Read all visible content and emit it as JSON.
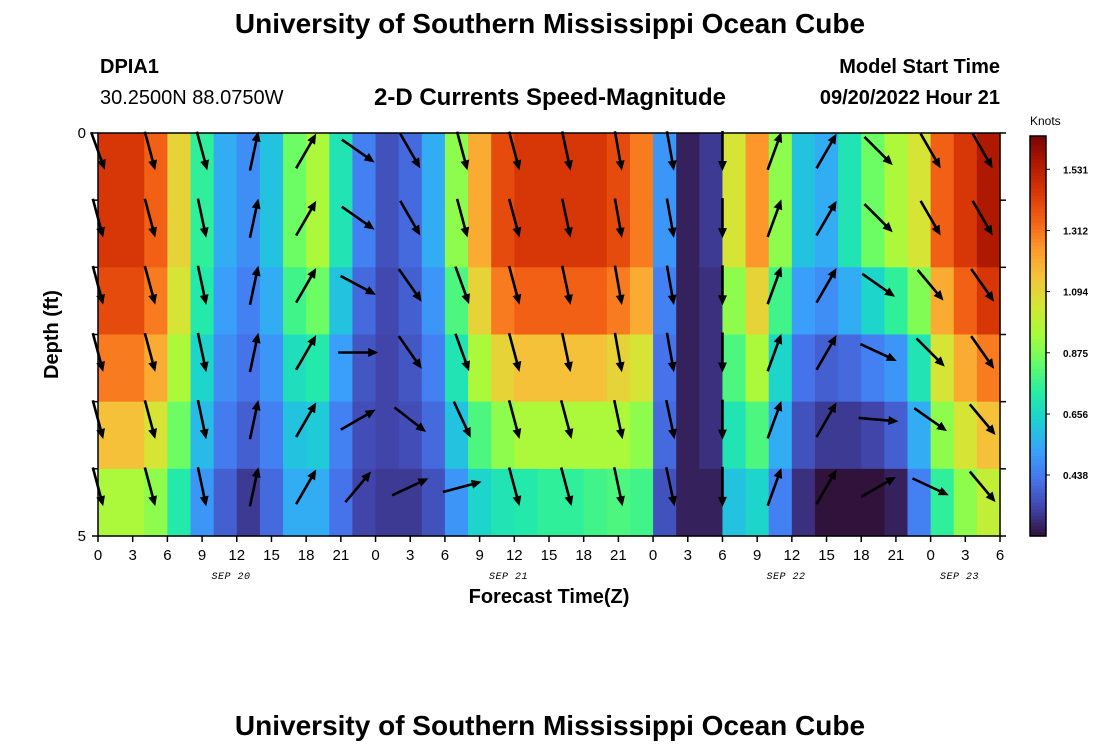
{
  "header": {
    "title": "University of Southern Mississippi Ocean Cube",
    "station_id": "DPIA1",
    "station_coords": "30.2500N  88.0750W",
    "subtitle": "2-D Currents Speed-Magnitude",
    "model_start_label": "Model Start Time",
    "model_start_value": "09/20/2022 Hour 21"
  },
  "footer": {
    "title": "University of Southern Mississippi Ocean Cube"
  },
  "chart_data": {
    "type": "heatmap",
    "title": "2-D Currents Speed-Magnitude",
    "xlabel": "Forecast Time(Z)",
    "ylabel": "Depth (ft)",
    "x_tick_labels": [
      "0",
      "3",
      "6",
      "9",
      "12",
      "15",
      "18",
      "21",
      "0",
      "3",
      "6",
      "9",
      "12",
      "15",
      "18",
      "21",
      "0",
      "3",
      "6",
      "9",
      "12",
      "15",
      "18",
      "21",
      "0",
      "3",
      "6"
    ],
    "date_labels": [
      {
        "label": "SEP 20",
        "hour": 11.5
      },
      {
        "label": "SEP 21",
        "hour": 35.5
      },
      {
        "label": "SEP 22",
        "hour": 59.5
      },
      {
        "label": "SEP 23",
        "hour": 74.5
      }
    ],
    "xlim": [
      0,
      78
    ],
    "ylim": [
      0,
      5
    ],
    "y_ticks": [
      0,
      5
    ],
    "colorbar": {
      "label": "Knots",
      "ticks": [
        1.531,
        1.312,
        1.094,
        0.875,
        0.656,
        0.438
      ],
      "range": [
        0.22,
        1.65
      ]
    },
    "hours": [
      0,
      2,
      4,
      6,
      8,
      10,
      12,
      14,
      16,
      18,
      20,
      22,
      24,
      26,
      28,
      30,
      32,
      34,
      36,
      38,
      40,
      42,
      44,
      46,
      48,
      50,
      52,
      54,
      56,
      58,
      60,
      62,
      64,
      66,
      68,
      70,
      72,
      74,
      76,
      78
    ],
    "depth_layers": [
      0,
      1,
      2,
      3,
      4,
      5
    ],
    "speed_knots": [
      [
        1.45,
        1.45,
        1.35,
        1.1,
        0.75,
        0.55,
        0.48,
        0.6,
        0.85,
        0.95,
        0.7,
        0.45,
        0.35,
        0.4,
        0.55,
        0.9,
        1.2,
        1.4,
        1.45,
        1.45,
        1.45,
        1.45,
        1.4,
        1.3,
        0.5,
        0.25,
        0.3,
        1.05,
        1.25,
        0.9,
        0.6,
        0.55,
        0.7,
        0.85,
        0.95,
        1.05,
        1.35,
        1.45,
        1.55,
        1.6
      ],
      [
        1.45,
        1.45,
        1.35,
        1.1,
        0.75,
        0.55,
        0.48,
        0.6,
        0.85,
        0.95,
        0.7,
        0.45,
        0.35,
        0.4,
        0.55,
        0.9,
        1.2,
        1.4,
        1.45,
        1.45,
        1.45,
        1.45,
        1.4,
        1.3,
        0.5,
        0.25,
        0.3,
        1.05,
        1.25,
        0.9,
        0.6,
        0.55,
        0.7,
        0.85,
        0.95,
        1.05,
        1.35,
        1.45,
        1.55,
        1.6
      ],
      [
        1.4,
        1.4,
        1.3,
        1.05,
        0.72,
        0.52,
        0.45,
        0.55,
        0.78,
        0.85,
        0.6,
        0.4,
        0.33,
        0.38,
        0.5,
        0.8,
        1.1,
        1.3,
        1.35,
        1.35,
        1.35,
        1.35,
        1.3,
        1.2,
        0.45,
        0.25,
        0.28,
        0.9,
        1.1,
        0.78,
        0.52,
        0.48,
        0.55,
        0.65,
        0.75,
        0.88,
        1.2,
        1.35,
        1.45,
        1.5
      ],
      [
        1.3,
        1.3,
        1.2,
        0.95,
        0.65,
        0.48,
        0.42,
        0.5,
        0.68,
        0.72,
        0.52,
        0.36,
        0.32,
        0.36,
        0.45,
        0.7,
        0.95,
        1.1,
        1.15,
        1.15,
        1.15,
        1.15,
        1.1,
        1.05,
        0.42,
        0.25,
        0.28,
        0.8,
        0.95,
        0.65,
        0.42,
        0.38,
        0.4,
        0.45,
        0.5,
        0.7,
        1.05,
        1.2,
        1.3,
        1.35
      ],
      [
        1.15,
        1.15,
        1.05,
        0.85,
        0.58,
        0.44,
        0.38,
        0.45,
        0.6,
        0.62,
        0.45,
        0.34,
        0.32,
        0.34,
        0.4,
        0.6,
        0.8,
        0.9,
        0.95,
        0.95,
        0.95,
        0.95,
        0.95,
        0.9,
        0.4,
        0.25,
        0.28,
        0.7,
        0.8,
        0.55,
        0.35,
        0.3,
        0.3,
        0.32,
        0.38,
        0.55,
        0.9,
        1.05,
        1.15,
        1.2
      ],
      [
        0.95,
        0.95,
        0.9,
        0.72,
        0.5,
        0.38,
        0.3,
        0.4,
        0.55,
        0.55,
        0.42,
        0.32,
        0.3,
        0.3,
        0.35,
        0.5,
        0.65,
        0.7,
        0.72,
        0.75,
        0.75,
        0.78,
        0.8,
        0.78,
        0.35,
        0.25,
        0.25,
        0.6,
        0.65,
        0.45,
        0.28,
        0.22,
        0.2,
        0.2,
        0.25,
        0.45,
        0.75,
        0.9,
        1.0,
        1.05
      ]
    ],
    "vector_hours": [
      0,
      4.5,
      9,
      13.5,
      18,
      22.5,
      27,
      31.5,
      36,
      40.5,
      45,
      49.5,
      54,
      58.5,
      63,
      67.5,
      72,
      76.5
    ],
    "vector_depths": [
      0,
      1,
      2,
      3,
      4,
      5
    ],
    "vector_direction_deg": [
      [
        160,
        165,
        165,
        12,
        30,
        125,
        150,
        165,
        165,
        168,
        170,
        170,
        180,
        20,
        30,
        135,
        150,
        150
      ],
      [
        165,
        165,
        168,
        12,
        30,
        125,
        150,
        165,
        165,
        168,
        170,
        170,
        180,
        20,
        30,
        135,
        150,
        150
      ],
      [
        165,
        165,
        168,
        12,
        30,
        118,
        145,
        160,
        165,
        168,
        170,
        170,
        180,
        20,
        30,
        125,
        140,
        145
      ],
      [
        165,
        165,
        168,
        12,
        30,
        90,
        145,
        160,
        165,
        168,
        170,
        170,
        180,
        20,
        30,
        115,
        135,
        145
      ],
      [
        165,
        165,
        168,
        12,
        30,
        60,
        128,
        155,
        165,
        165,
        168,
        168,
        180,
        20,
        30,
        95,
        125,
        140
      ],
      [
        165,
        165,
        168,
        12,
        30,
        40,
        65,
        75,
        165,
        165,
        168,
        168,
        180,
        20,
        30,
        60,
        115,
        140
      ]
    ]
  },
  "colors": {
    "background": "#ffffff",
    "text": "#000000",
    "arrow": "#000000",
    "colormap": [
      "#30123b",
      "#4145ab",
      "#4675ed",
      "#39a2fc",
      "#1bcfd4",
      "#24eca6",
      "#61fc6c",
      "#a4fc3b",
      "#d1e834",
      "#f3c63a",
      "#fe9b2d",
      "#f36315",
      "#d93806",
      "#b11901",
      "#7a0403"
    ]
  }
}
